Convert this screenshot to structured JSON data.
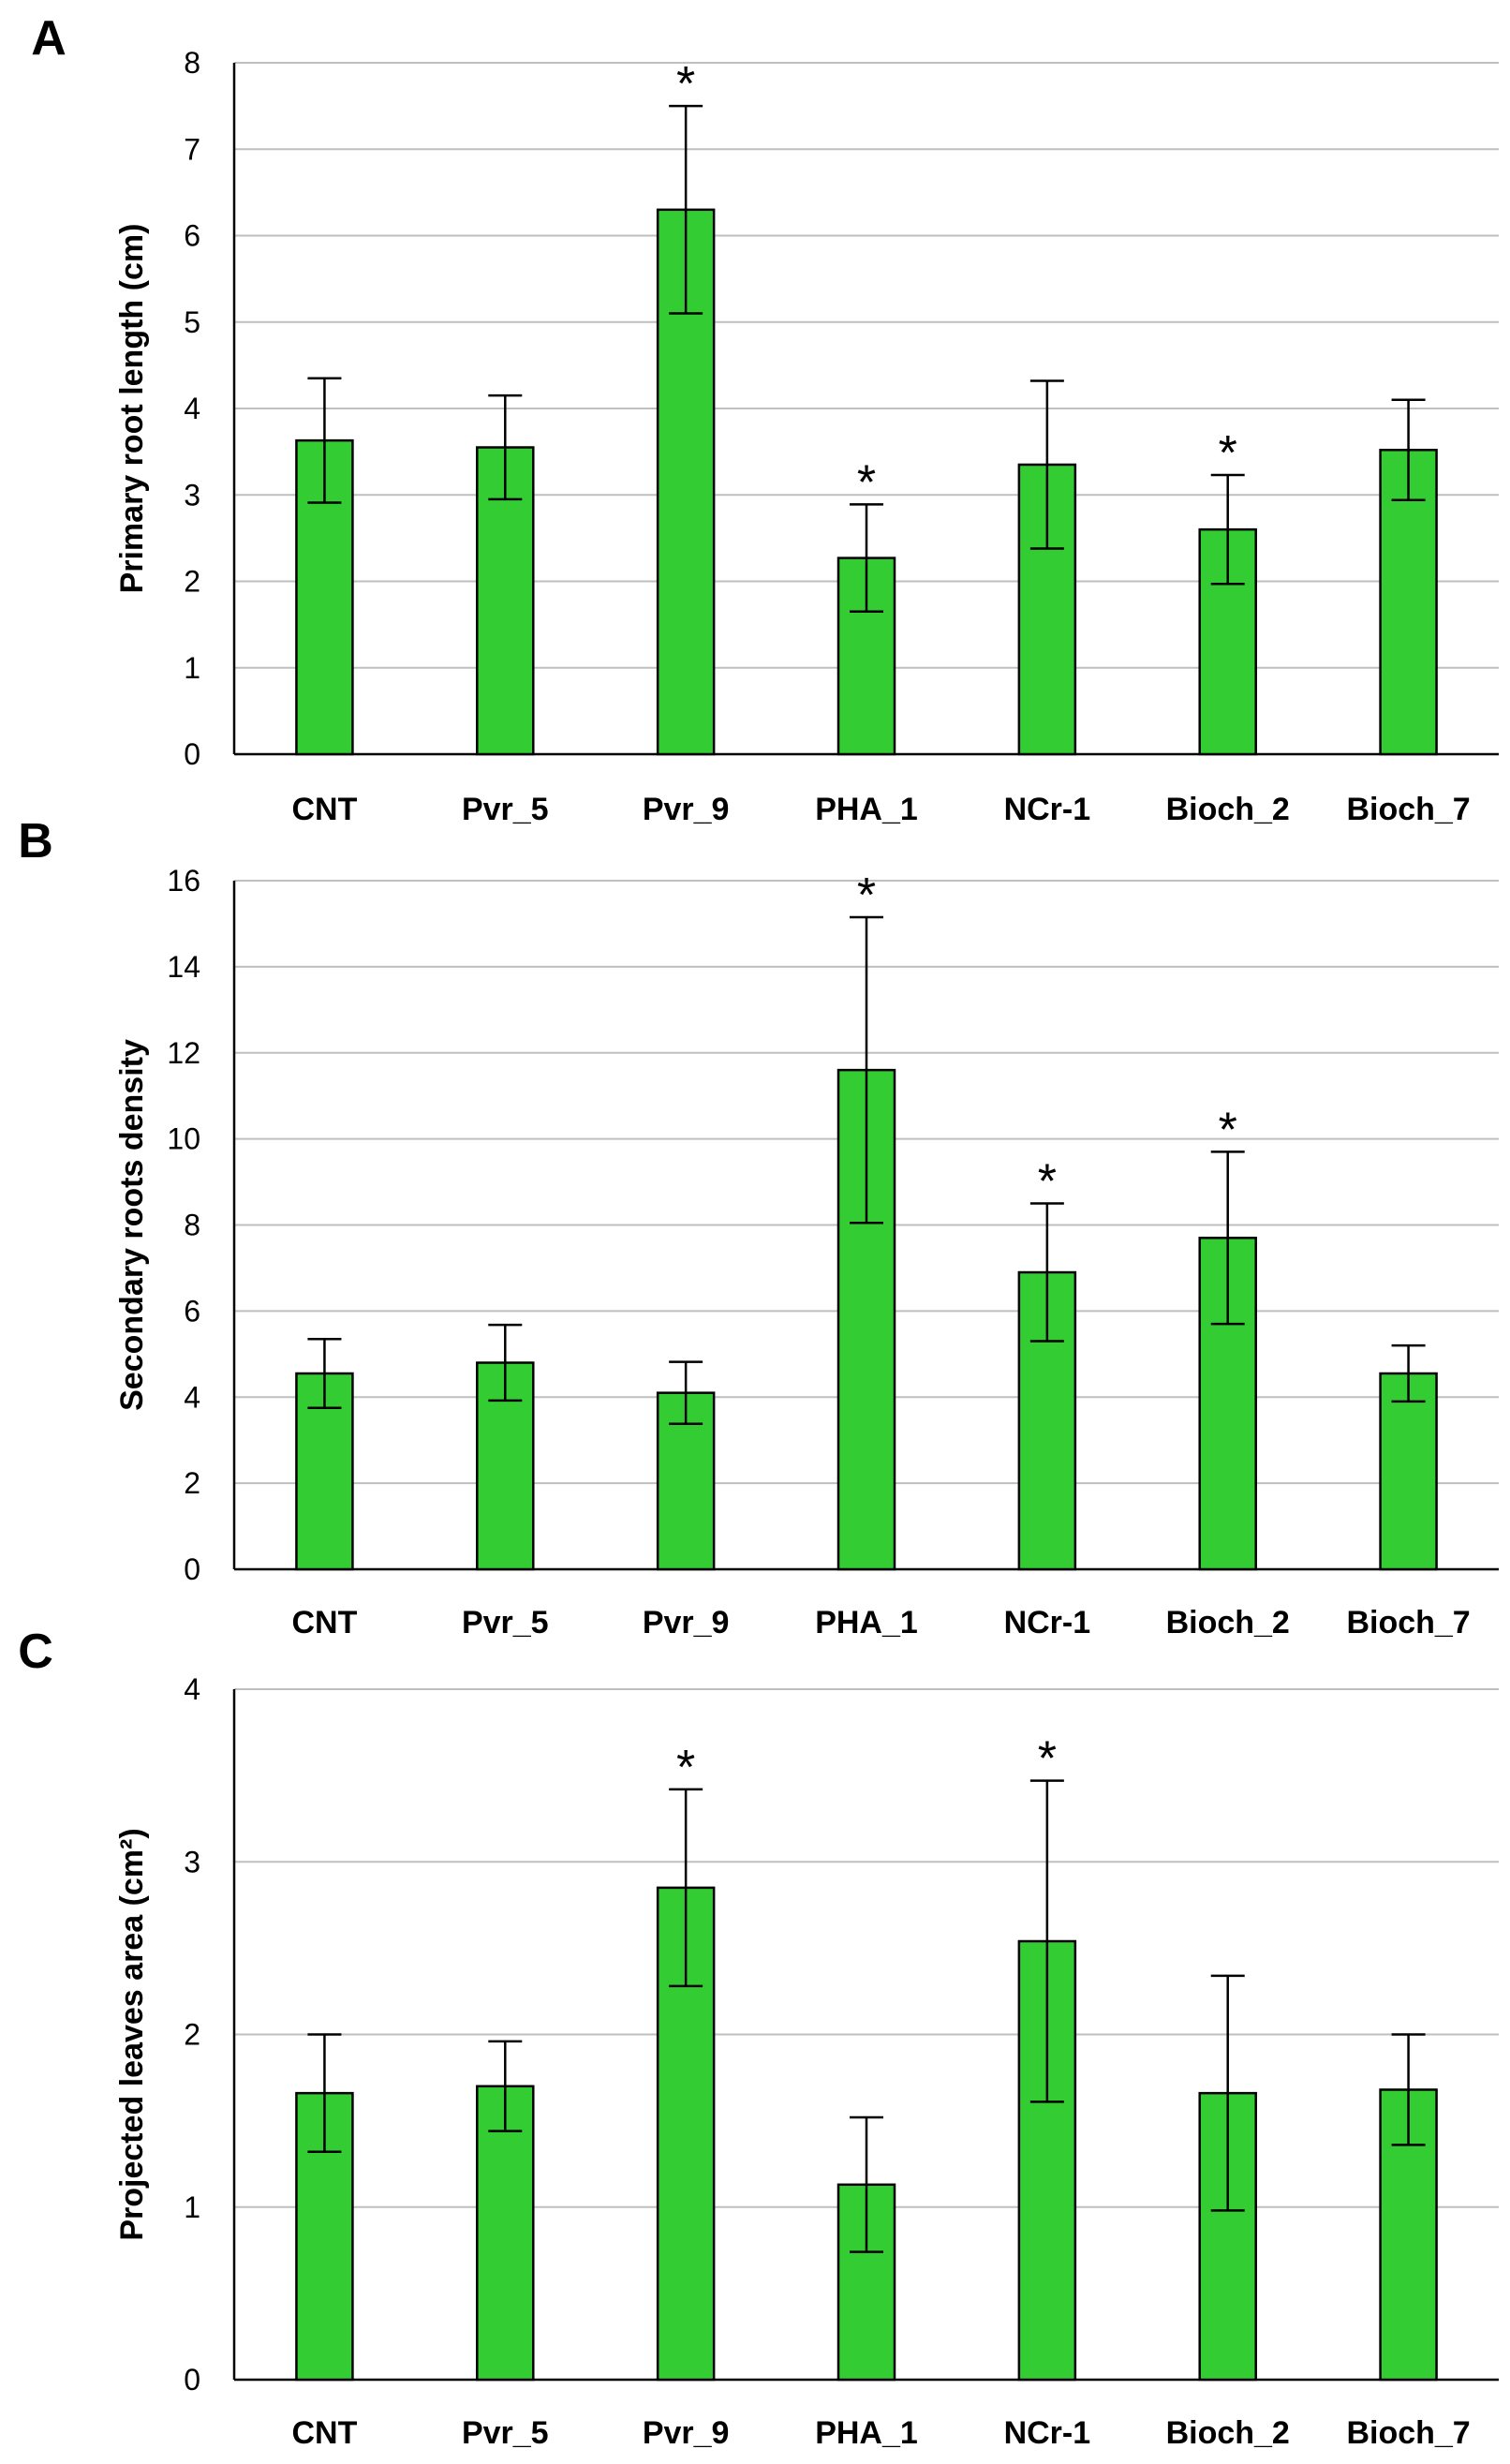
{
  "chart_data": [
    {
      "type": "bar",
      "panel": "A",
      "ylabel": "Primary root length (cm)",
      "ylim": [
        0,
        8
      ],
      "yticks": [
        0,
        1,
        2,
        3,
        4,
        5,
        6,
        7,
        8
      ],
      "grid": true,
      "categories": [
        "CNT",
        "Pvr_5",
        "Pvr_9",
        "PHA_1",
        "NCr-1",
        "Bioch_2",
        "Bioch_7"
      ],
      "values": [
        3.63,
        3.55,
        6.3,
        2.27,
        3.35,
        2.6,
        3.52
      ],
      "errors": [
        0.72,
        0.6,
        1.2,
        0.62,
        0.97,
        0.63,
        0.58
      ],
      "significant": [
        false,
        false,
        true,
        true,
        false,
        true,
        false
      ],
      "marker": "*"
    },
    {
      "type": "bar",
      "panel": "B",
      "ylabel": "Secondary roots density",
      "ylim": [
        0,
        16
      ],
      "yticks": [
        0,
        2,
        4,
        6,
        8,
        10,
        12,
        14,
        16
      ],
      "grid": true,
      "categories": [
        "CNT",
        "Pvr_5",
        "Pvr_9",
        "PHA_1",
        "NCr-1",
        "Bioch_2",
        "Bioch_7"
      ],
      "values": [
        4.55,
        4.8,
        4.1,
        11.6,
        6.9,
        7.7,
        4.55
      ],
      "errors": [
        0.8,
        0.88,
        0.72,
        3.55,
        1.6,
        2.0,
        0.65
      ],
      "significant": [
        false,
        false,
        false,
        true,
        true,
        true,
        false
      ],
      "marker": "*"
    },
    {
      "type": "bar",
      "panel": "C",
      "ylabel": "Projected leaves area (cm²)",
      "ylim": [
        0,
        4
      ],
      "yticks": [
        0,
        1,
        2,
        3,
        4
      ],
      "grid": true,
      "categories": [
        "CNT",
        "Pvr_5",
        "Pvr_9",
        "PHA_1",
        "NCr-1",
        "Bioch_2",
        "Bioch_7"
      ],
      "values": [
        1.66,
        1.7,
        2.85,
        1.13,
        2.54,
        1.66,
        1.68
      ],
      "errors": [
        0.34,
        0.26,
        0.57,
        0.39,
        0.93,
        0.68,
        0.32
      ],
      "significant": [
        false,
        false,
        true,
        false,
        true,
        false,
        false
      ],
      "marker": "*"
    }
  ]
}
